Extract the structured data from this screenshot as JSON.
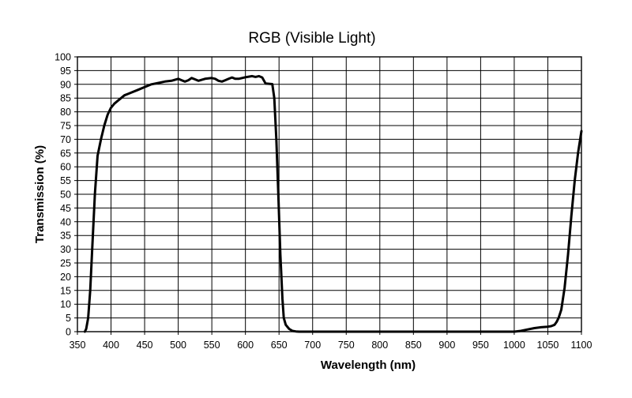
{
  "chart_data": {
    "type": "line",
    "title": "RGB (Visible Light)",
    "xlabel": "Wavelength (nm)",
    "ylabel": "Transmission (%)",
    "xlim": [
      350,
      1100
    ],
    "ylim": [
      0,
      100
    ],
    "xticks": [
      350,
      400,
      450,
      500,
      550,
      600,
      650,
      700,
      750,
      800,
      850,
      900,
      950,
      1000,
      1050,
      1100
    ],
    "yticks": [
      0,
      5,
      10,
      15,
      20,
      25,
      30,
      35,
      40,
      45,
      50,
      55,
      60,
      65,
      70,
      75,
      80,
      85,
      90,
      95,
      100
    ],
    "grid": true,
    "series": [
      {
        "color": "#000000",
        "x": [
          361,
          363,
          366,
          369,
          372,
          376,
          380,
          385,
          390,
          395,
          400,
          405,
          410,
          415,
          420,
          425,
          430,
          440,
          450,
          460,
          470,
          480,
          490,
          500,
          505,
          510,
          515,
          520,
          525,
          530,
          540,
          550,
          555,
          560,
          565,
          570,
          575,
          580,
          585,
          590,
          600,
          610,
          615,
          620,
          625,
          630,
          635,
          640,
          643,
          646,
          649,
          652,
          655,
          657,
          660,
          665,
          670,
          675,
          680,
          700,
          750,
          800,
          850,
          900,
          950,
          1000,
          1010,
          1020,
          1030,
          1040,
          1050,
          1055,
          1060,
          1063,
          1066,
          1070,
          1075,
          1080,
          1085,
          1090,
          1095,
          1100
        ],
        "y": [
          0,
          1,
          5,
          15,
          30,
          50,
          64,
          70,
          75,
          79,
          81.5,
          83,
          84,
          85,
          86,
          86.5,
          87,
          88,
          89,
          90,
          90.5,
          91,
          91.3,
          92,
          91.5,
          91,
          91.5,
          92.3,
          91.8,
          91.3,
          92,
          92.3,
          92,
          91.3,
          91,
          91.5,
          92,
          92.5,
          92,
          92,
          92.6,
          93,
          92.7,
          93,
          92.5,
          90.3,
          90.2,
          90.1,
          85,
          70,
          50,
          28,
          12,
          5,
          2.5,
          1,
          0.3,
          0.1,
          0,
          0,
          0,
          0,
          0,
          0,
          0,
          0,
          0.3,
          0.8,
          1.3,
          1.6,
          1.8,
          2,
          2.5,
          3.5,
          5,
          8,
          16,
          28,
          42,
          55,
          65,
          73
        ]
      }
    ]
  }
}
